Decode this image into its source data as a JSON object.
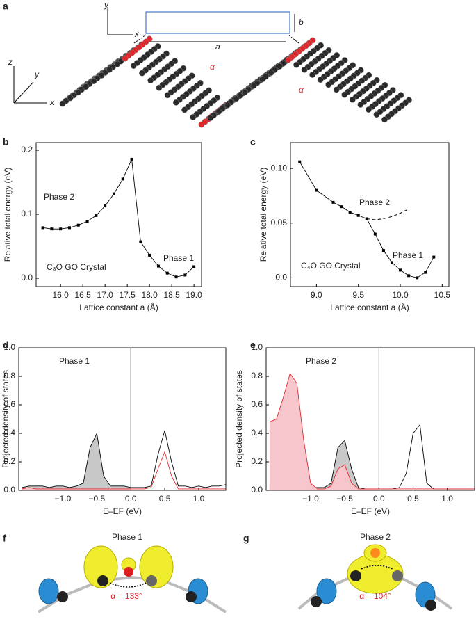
{
  "panel_labels": [
    "a",
    "b",
    "c",
    "d",
    "e",
    "f",
    "g"
  ],
  "panel_a": {
    "top_axes": [
      "y",
      "x"
    ],
    "side_axes": [
      "z",
      "y",
      "x"
    ],
    "dims": [
      "a",
      "b"
    ],
    "angles": [
      "α",
      "α"
    ]
  },
  "panel_f": {
    "title": "Phase 1",
    "angle": "α = 133°"
  },
  "panel_g": {
    "title": "Phase 2",
    "angle": "α = 104°"
  },
  "chart_data": [
    {
      "type": "line",
      "xlabel": "Lattice constant a (Å)",
      "ylabel": "Relative total energy (eV)",
      "annotations": [
        "Phase 2",
        "Phase 1",
        "C₈O GO Crystal"
      ],
      "x": [
        15.6,
        15.8,
        16.0,
        16.2,
        16.4,
        16.6,
        16.8,
        17.0,
        17.2,
        17.4,
        17.6,
        17.8,
        18.0,
        18.2,
        18.4,
        18.6,
        18.8,
        19.0
      ],
      "series": [
        {
          "color": "#000000",
          "marker": "square",
          "dash": false,
          "values": [
            0.079,
            0.077,
            0.077,
            0.079,
            0.083,
            0.089,
            0.098,
            0.113,
            0.132,
            0.155,
            0.186,
            0.057,
            0.036,
            0.019,
            0.008,
            0.002,
            0.005,
            0.018
          ]
        }
      ],
      "xlim": [
        15.45,
        19.17
      ],
      "ylim": [
        -0.013,
        0.212
      ],
      "xticks": [
        {
          "value": 16,
          "label": "16.0"
        },
        16.5,
        {
          "value": 17,
          "label": "17.0"
        },
        17.5,
        {
          "value": 18,
          "label": "18.0"
        },
        18.5,
        {
          "value": 19,
          "label": "19.0"
        }
      ],
      "yticks": [
        {
          "value": 0,
          "label": "0.0"
        },
        0.1,
        0.2
      ]
    },
    {
      "type": "line",
      "xlabel": "Lattice constant a (Å)",
      "ylabel": "Relative total energy (eV)",
      "annotations": [
        "Phase 2",
        "Phase 1",
        "C₄O GO Crystal"
      ],
      "x": [
        8.8,
        9.0,
        9.2,
        9.3,
        9.4,
        9.5,
        9.6,
        9.7,
        9.8,
        9.9,
        10.0,
        10.1,
        10.2,
        10.3,
        10.4
      ],
      "series": [
        {
          "color": "#000000",
          "marker": "square",
          "dash": false,
          "values": [
            0.106,
            0.08,
            0.069,
            0.065,
            0.06,
            0.057,
            0.054,
            0.04,
            0.025,
            0.014,
            0.007,
            0.002,
            0.0,
            0.005,
            0.019
          ]
        },
        {
          "color": "#000000",
          "marker": "none",
          "dash": true,
          "values": [
            null,
            null,
            null,
            null,
            null,
            null,
            0.054,
            0.053,
            0.054,
            0.056,
            0.059,
            0.063,
            null,
            null,
            null
          ]
        }
      ],
      "xlim": [
        8.69,
        10.58
      ],
      "ylim": [
        -0.008,
        0.1236
      ],
      "xticks": [
        {
          "value": 9,
          "label": "9.0"
        },
        9.5,
        {
          "value": 10,
          "label": "10.0"
        },
        10.5
      ],
      "yticks": [
        {
          "value": 0,
          "label": "0.0"
        },
        0.05,
        {
          "value": 0.1,
          "label": "0.10"
        }
      ]
    },
    {
      "type": "area",
      "xlabel": "E–EF (eV)",
      "ylabel": "Projected density of states",
      "annotations": [
        "Phase 1"
      ],
      "x": [
        -1.6,
        -1.5,
        -1.4,
        -1.3,
        -1.2,
        -1.1,
        -1.0,
        -0.9,
        -0.8,
        -0.7,
        -0.6,
        -0.5,
        -0.4,
        -0.3,
        -0.2,
        -0.1,
        0.0,
        0.1,
        0.2,
        0.3,
        0.4,
        0.5,
        0.6,
        0.7,
        0.8,
        0.9,
        1.0,
        1.1,
        1.2,
        1.3,
        1.4
      ],
      "series": [
        {
          "color": "#000000",
          "fill": "#c8c8c8",
          "values": [
            0.02,
            0.03,
            0.03,
            0.03,
            0.02,
            0.03,
            0.03,
            0.02,
            0.03,
            0.05,
            0.3,
            0.4,
            0.1,
            0.03,
            0.03,
            0.03,
            0.02,
            0.02,
            0.02,
            0.03,
            0.25,
            0.42,
            0.2,
            0.03,
            0.03,
            0.02,
            0.03,
            0.02,
            0.03,
            0.03,
            0.04
          ]
        },
        {
          "color": "#e0272b",
          "fill": "#f7c5cc",
          "values": [
            0.01,
            0.02,
            0.01,
            0.01,
            0.01,
            0.01,
            0.01,
            0.01,
            0.01,
            0.01,
            0.01,
            0.01,
            0.01,
            0.01,
            0.01,
            0.01,
            0.01,
            0.01,
            0.01,
            0.02,
            0.15,
            0.27,
            0.1,
            0.01,
            0.01,
            0.01,
            0.01,
            0.01,
            0.01,
            0.01,
            0.01
          ]
        }
      ],
      "xlim": [
        -1.65,
        1.4
      ],
      "ylim": [
        0,
        1
      ],
      "xticks": [
        {
          "value": -1,
          "label": "−1.0"
        },
        {
          "value": -0.5,
          "label": "−0.5"
        },
        {
          "value": 0,
          "label": "0.0"
        },
        0.5,
        {
          "value": 1,
          "label": "1.0"
        }
      ],
      "yticks": [
        {
          "value": 0,
          "label": "0.0"
        },
        0.2,
        0.4,
        0.6,
        0.8,
        {
          "value": 1,
          "label": "1.0"
        }
      ]
    },
    {
      "type": "area",
      "xlabel": "E–EF (eV)",
      "ylabel": "Projected density of states",
      "annotations": [
        "Phase 2"
      ],
      "x": [
        -1.6,
        -1.5,
        -1.4,
        -1.3,
        -1.2,
        -1.1,
        -1.0,
        -0.9,
        -0.8,
        -0.7,
        -0.6,
        -0.5,
        -0.4,
        -0.3,
        -0.2,
        -0.1,
        0.0,
        0.1,
        0.2,
        0.3,
        0.4,
        0.5,
        0.6,
        0.7,
        0.8,
        0.9,
        1.0,
        1.1,
        1.2,
        1.3,
        1.4
      ],
      "series": [
        {
          "color": "#000000",
          "fill": "#c8c8c8",
          "values": [
            0.04,
            0.04,
            0.04,
            0.04,
            0.04,
            0.03,
            0.02,
            0.02,
            0.02,
            0.05,
            0.3,
            0.35,
            0.15,
            0.02,
            0.01,
            0.01,
            0.01,
            0.01,
            0.01,
            0.02,
            0.12,
            0.4,
            0.46,
            0.05,
            0.01,
            0.01,
            0.01,
            0.01,
            0.01,
            0.01,
            0.01
          ]
        },
        {
          "color": "#e0272b",
          "fill": "#f7c5cc",
          "values": [
            0.48,
            0.5,
            0.65,
            0.82,
            0.75,
            0.35,
            0.05,
            0.01,
            0.01,
            0.03,
            0.15,
            0.18,
            0.05,
            0.01,
            0.01,
            0.01,
            0.01,
            0.01,
            0.01,
            0.01,
            0.01,
            0.01,
            0.01,
            0.01,
            0.01,
            0.01,
            0.01,
            0.01,
            0.01,
            0.01,
            0.01
          ]
        }
      ],
      "xlim": [
        -1.65,
        1.4
      ],
      "ylim": [
        0,
        1
      ],
      "xticks": [
        {
          "value": -1,
          "label": "−1.0"
        },
        {
          "value": -0.5,
          "label": "−0.5"
        },
        {
          "value": 0,
          "label": "0.0"
        },
        0.5,
        {
          "value": 1,
          "label": "1.0"
        }
      ],
      "yticks": [
        {
          "value": 0,
          "label": "0.0"
        },
        0.2,
        0.4,
        0.6,
        0.8,
        {
          "value": 1,
          "label": "1.0"
        }
      ]
    }
  ]
}
